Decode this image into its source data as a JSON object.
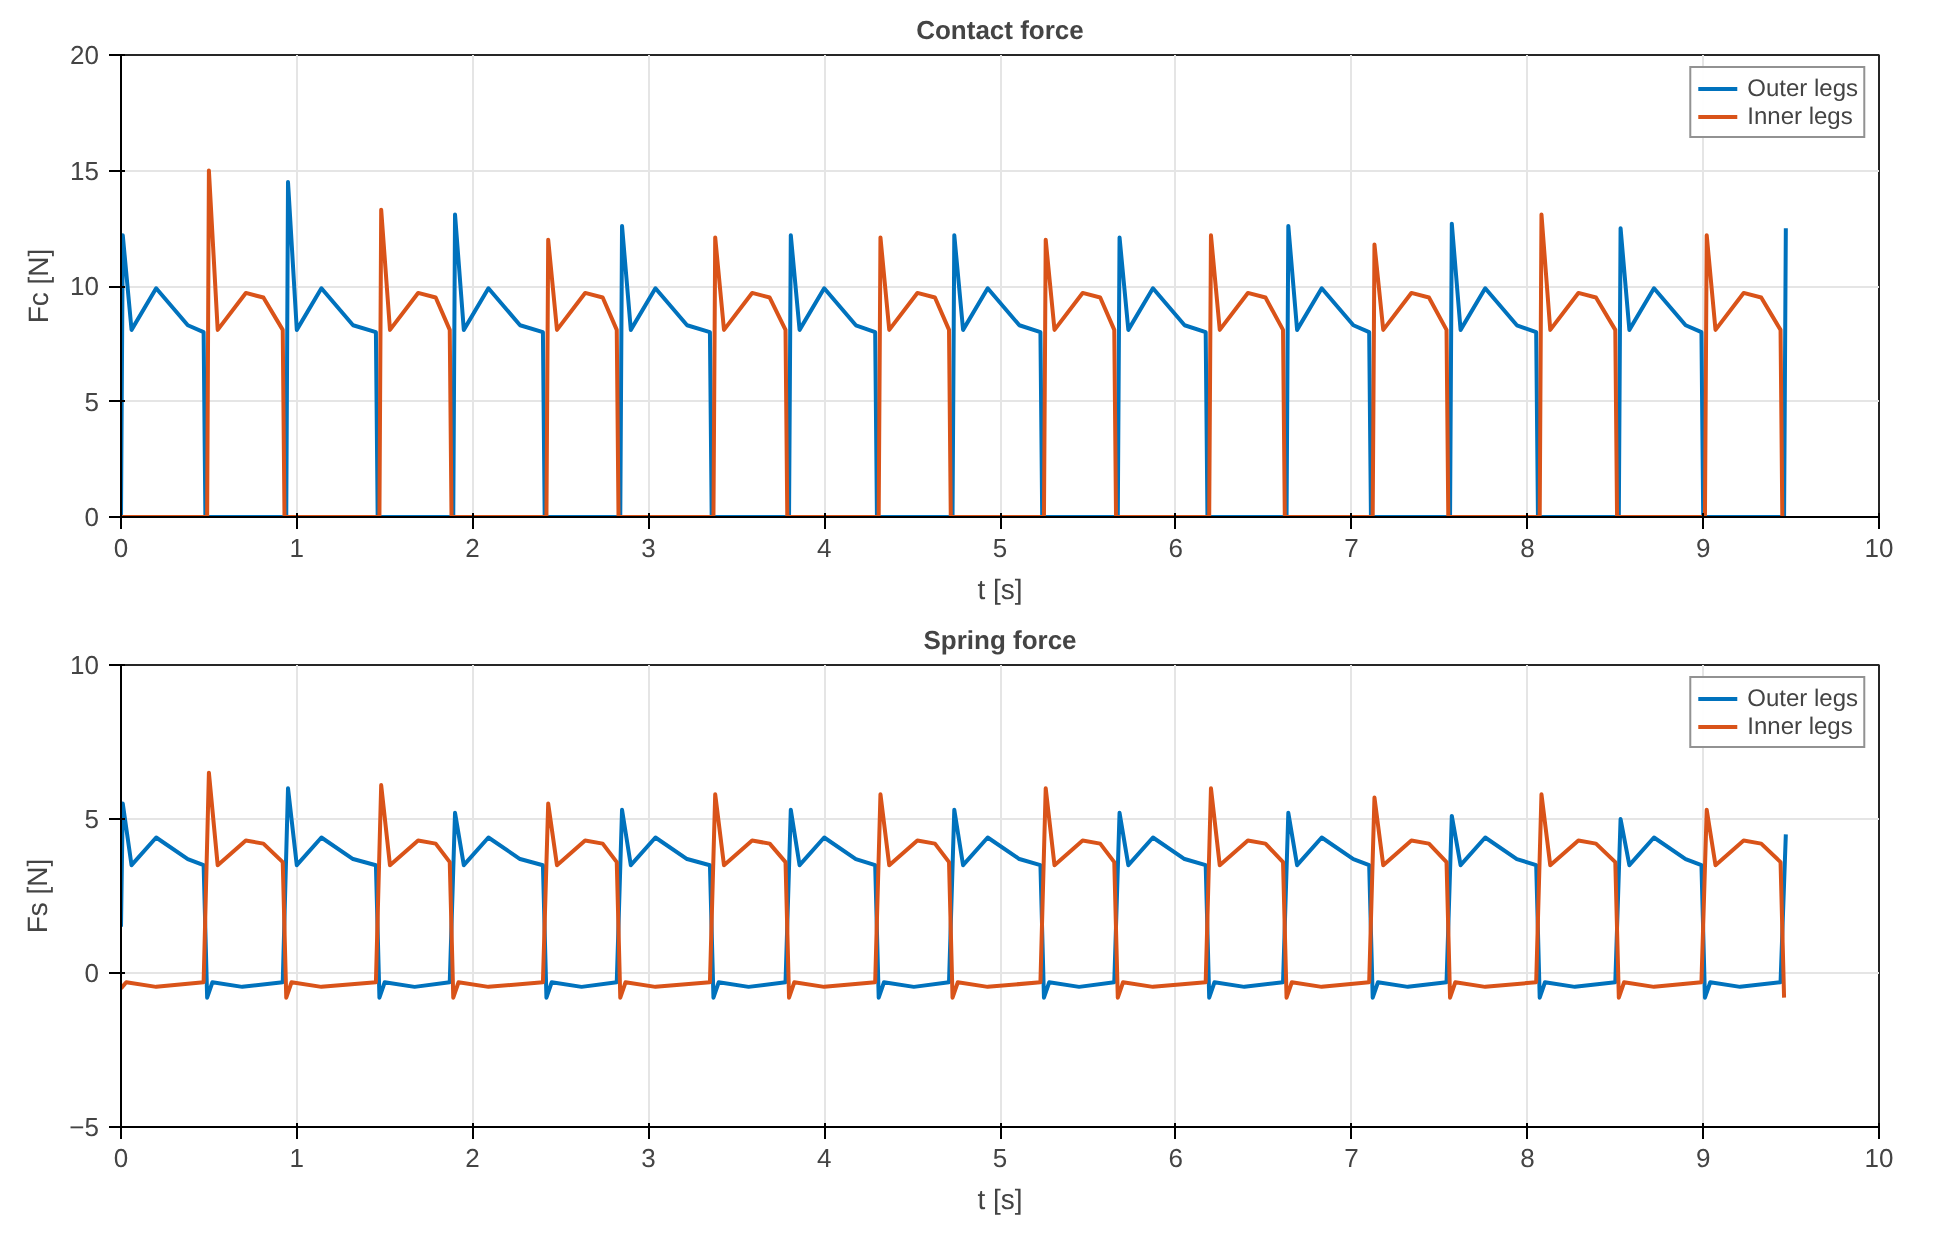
{
  "chart_data": [
    {
      "type": "line",
      "title": "Contact force",
      "xlabel": "t [s]",
      "ylabel": "Fc [N]",
      "xlim": [
        0,
        10
      ],
      "ylim": [
        0,
        20
      ],
      "xticks": [
        0,
        1,
        2,
        3,
        4,
        5,
        6,
        7,
        8,
        9,
        10
      ],
      "yticks": [
        0,
        5,
        10,
        15,
        20
      ],
      "grid": true,
      "legend": "top right",
      "line_style": "solid",
      "series": [
        {
          "name": "Outer legs",
          "color": "#0072bd",
          "x": [
            0,
            0.01,
            0.06,
            0.2,
            0.38,
            0.47,
            0.48,
            0.94,
            0.95,
            1.0,
            1.14,
            1.32,
            1.45,
            1.46,
            1.89,
            1.9,
            1.95,
            2.09,
            2.27,
            2.4,
            2.41,
            2.84,
            2.85,
            2.9,
            3.04,
            3.22,
            3.35,
            3.36,
            3.8,
            3.81,
            3.86,
            4.0,
            4.18,
            4.29,
            4.3,
            4.73,
            4.74,
            4.79,
            4.93,
            5.11,
            5.23,
            5.24,
            5.67,
            5.68,
            5.73,
            5.87,
            6.05,
            6.17,
            6.18,
            6.63,
            6.64,
            6.69,
            6.83,
            7.01,
            7.1,
            7.11,
            7.56,
            7.57,
            7.62,
            7.76,
            7.94,
            8.05,
            8.06,
            8.52,
            8.53,
            8.58,
            8.72,
            8.9,
            8.99,
            9.0,
            9.46,
            9.47
          ],
          "values": [
            0,
            12.2,
            8.1,
            9.9,
            8.3,
            8,
            0,
            0,
            14.5,
            8.1,
            9.9,
            8.3,
            8,
            0,
            0,
            13.1,
            8.1,
            9.9,
            8.3,
            8,
            0,
            0,
            12.6,
            8.1,
            9.9,
            8.3,
            8,
            0,
            0,
            12.2,
            8.1,
            9.9,
            8.3,
            8,
            0,
            0,
            12.2,
            8.1,
            9.9,
            8.3,
            8,
            0,
            0,
            12.1,
            8.1,
            9.9,
            8.3,
            8,
            0,
            0,
            12.6,
            8.1,
            9.9,
            8.3,
            8,
            0,
            0,
            12.7,
            8.1,
            9.9,
            8.3,
            8,
            0,
            0,
            12.5,
            8.1,
            9.9,
            8.3,
            8,
            0,
            0,
            12.5
          ]
        },
        {
          "name": "Inner legs",
          "color": "#d95319",
          "x": [
            0,
            0.49,
            0.5,
            0.55,
            0.71,
            0.81,
            0.92,
            0.93,
            1.47,
            1.48,
            1.53,
            1.69,
            1.79,
            1.87,
            1.88,
            2.42,
            2.43,
            2.48,
            2.64,
            2.74,
            2.82,
            2.83,
            3.37,
            3.38,
            3.43,
            3.59,
            3.69,
            3.78,
            3.79,
            4.31,
            4.32,
            4.37,
            4.53,
            4.63,
            4.71,
            4.72,
            5.25,
            5.26,
            5.31,
            5.47,
            5.57,
            5.65,
            5.66,
            6.19,
            6.2,
            6.25,
            6.41,
            6.51,
            6.61,
            6.62,
            7.12,
            7.13,
            7.18,
            7.34,
            7.44,
            7.54,
            7.55,
            8.07,
            8.08,
            8.13,
            8.29,
            8.39,
            8.5,
            8.51,
            9.01,
            9.02,
            9.07,
            9.23,
            9.33,
            9.44,
            9.45
          ],
          "values": [
            0,
            0,
            15,
            8.1,
            9.7,
            9.5,
            8.1,
            0,
            0,
            13.3,
            8.1,
            9.7,
            9.5,
            8.1,
            0,
            0,
            12,
            8.1,
            9.7,
            9.5,
            8.1,
            0,
            0,
            12.1,
            8.1,
            9.7,
            9.5,
            8.1,
            0,
            0,
            12.1,
            8.1,
            9.7,
            9.5,
            8.1,
            0,
            0,
            12,
            8.1,
            9.7,
            9.5,
            8.1,
            0,
            0,
            12.2,
            8.1,
            9.7,
            9.5,
            8.1,
            0,
            0,
            11.8,
            8.1,
            9.7,
            9.5,
            8.1,
            0,
            0,
            13.1,
            8.1,
            9.7,
            9.5,
            8.1,
            0,
            0,
            12.2,
            8.1,
            9.7,
            9.5,
            8.1,
            0
          ]
        }
      ]
    },
    {
      "type": "line",
      "title": "Spring force",
      "xlabel": "t [s]",
      "ylabel": "Fs [N]",
      "xlim": [
        0,
        10
      ],
      "ylim": [
        -5,
        10
      ],
      "xticks": [
        0,
        1,
        2,
        3,
        4,
        5,
        6,
        7,
        8,
        9,
        10
      ],
      "yticks": [
        -5,
        0,
        5,
        10
      ],
      "grid": true,
      "legend": "top right",
      "line_style": "solid",
      "series": [
        {
          "name": "Outer legs",
          "color": "#0072bd",
          "x": [
            0,
            0.01,
            0.06,
            0.2,
            0.38,
            0.47,
            0.49,
            0.52,
            0.69,
            0.92,
            0.95,
            1.0,
            1.14,
            1.32,
            1.45,
            1.47,
            1.5,
            1.67,
            1.87,
            1.9,
            1.95,
            2.09,
            2.27,
            2.4,
            2.42,
            2.45,
            2.62,
            2.82,
            2.85,
            2.9,
            3.04,
            3.22,
            3.35,
            3.37,
            3.4,
            3.57,
            3.78,
            3.81,
            3.86,
            4.0,
            4.18,
            4.29,
            4.31,
            4.34,
            4.51,
            4.71,
            4.74,
            4.79,
            4.93,
            5.11,
            5.23,
            5.25,
            5.28,
            5.45,
            5.65,
            5.68,
            5.73,
            5.87,
            6.05,
            6.17,
            6.19,
            6.22,
            6.39,
            6.61,
            6.64,
            6.69,
            6.83,
            7.01,
            7.1,
            7.12,
            7.15,
            7.32,
            7.54,
            7.57,
            7.62,
            7.76,
            7.94,
            8.05,
            8.07,
            8.1,
            8.27,
            8.5,
            8.53,
            8.58,
            8.72,
            8.9,
            8.99,
            9.01,
            9.04,
            9.21,
            9.44,
            9.47
          ],
          "values": [
            1.5,
            5.5,
            3.5,
            4.4,
            3.7,
            3.5,
            -0.8,
            -0.3,
            -0.45,
            -0.3,
            6.0,
            3.5,
            4.4,
            3.7,
            3.5,
            -0.8,
            -0.3,
            -0.45,
            -0.3,
            5.2,
            3.5,
            4.4,
            3.7,
            3.5,
            -0.8,
            -0.3,
            -0.45,
            -0.3,
            5.3,
            3.5,
            4.4,
            3.7,
            3.5,
            -0.8,
            -0.3,
            -0.45,
            -0.3,
            5.3,
            3.5,
            4.4,
            3.7,
            3.5,
            -0.8,
            -0.3,
            -0.45,
            -0.3,
            5.3,
            3.5,
            4.4,
            3.7,
            3.5,
            -0.8,
            -0.3,
            -0.45,
            -0.3,
            5.2,
            3.5,
            4.4,
            3.7,
            3.5,
            -0.8,
            -0.3,
            -0.45,
            -0.3,
            5.2,
            3.5,
            4.4,
            3.7,
            3.5,
            -0.8,
            -0.3,
            -0.45,
            -0.3,
            5.1,
            3.5,
            4.4,
            3.7,
            3.5,
            -0.8,
            -0.3,
            -0.45,
            -0.3,
            5.0,
            3.5,
            4.4,
            3.7,
            3.5,
            -0.8,
            -0.3,
            -0.45,
            -0.3,
            4.5
          ]
        },
        {
          "name": "Inner legs",
          "color": "#d95319",
          "x": [
            0,
            0.03,
            0.2,
            0.47,
            0.5,
            0.55,
            0.71,
            0.81,
            0.92,
            0.94,
            0.97,
            1.14,
            1.45,
            1.48,
            1.53,
            1.69,
            1.79,
            1.87,
            1.89,
            1.92,
            2.09,
            2.4,
            2.43,
            2.48,
            2.64,
            2.74,
            2.82,
            2.84,
            2.87,
            3.04,
            3.35,
            3.38,
            3.43,
            3.59,
            3.69,
            3.78,
            3.8,
            3.83,
            4.0,
            4.29,
            4.32,
            4.37,
            4.53,
            4.63,
            4.71,
            4.73,
            4.76,
            4.93,
            5.23,
            5.26,
            5.31,
            5.47,
            5.57,
            5.65,
            5.67,
            5.7,
            5.87,
            6.17,
            6.2,
            6.25,
            6.41,
            6.51,
            6.61,
            6.63,
            6.66,
            6.83,
            7.1,
            7.13,
            7.18,
            7.34,
            7.44,
            7.54,
            7.56,
            7.59,
            7.76,
            8.05,
            8.08,
            8.13,
            8.29,
            8.39,
            8.5,
            8.52,
            8.55,
            8.72,
            8.99,
            9.02,
            9.07,
            9.23,
            9.33,
            9.44,
            9.46
          ],
          "values": [
            -0.5,
            -0.3,
            -0.45,
            -0.3,
            6.5,
            3.5,
            4.3,
            4.2,
            3.6,
            -0.8,
            -0.3,
            -0.45,
            -0.3,
            6.1,
            3.5,
            4.3,
            4.2,
            3.6,
            -0.8,
            -0.3,
            -0.45,
            -0.3,
            5.5,
            3.5,
            4.3,
            4.2,
            3.6,
            -0.8,
            -0.3,
            -0.45,
            -0.3,
            5.8,
            3.5,
            4.3,
            4.2,
            3.6,
            -0.8,
            -0.3,
            -0.45,
            -0.3,
            5.8,
            3.5,
            4.3,
            4.2,
            3.6,
            -0.8,
            -0.3,
            -0.45,
            -0.3,
            6.0,
            3.5,
            4.3,
            4.2,
            3.6,
            -0.8,
            -0.3,
            -0.45,
            -0.3,
            6.0,
            3.5,
            4.3,
            4.2,
            3.6,
            -0.8,
            -0.3,
            -0.45,
            -0.3,
            5.7,
            3.5,
            4.3,
            4.2,
            3.6,
            -0.8,
            -0.3,
            -0.45,
            -0.3,
            5.8,
            3.5,
            4.3,
            4.2,
            3.6,
            -0.8,
            -0.3,
            -0.45,
            -0.3,
            5.3,
            3.5,
            4.3,
            4.2,
            3.6,
            -0.8
          ]
        }
      ]
    }
  ]
}
